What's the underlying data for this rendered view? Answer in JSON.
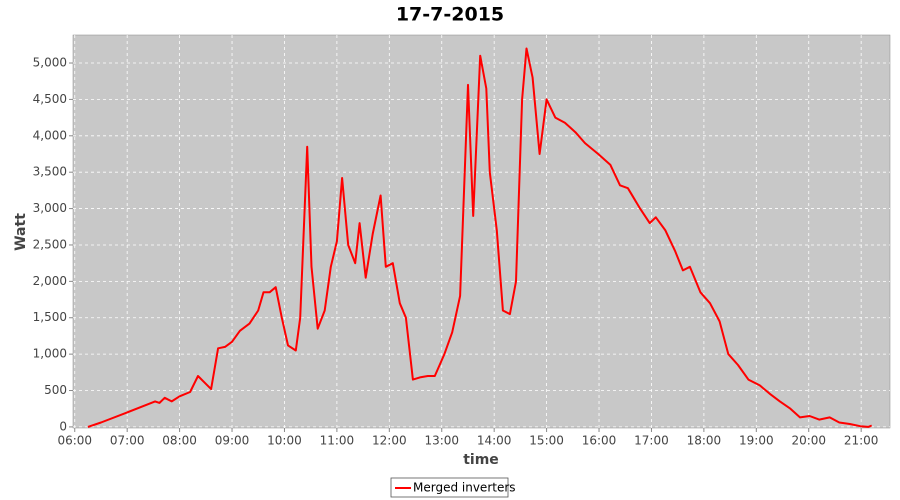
{
  "chart_data": {
    "type": "line",
    "title": "17-7-2015",
    "x_label": "time",
    "y_label": "Watt",
    "x": [
      "06:15",
      "06:30",
      "07:00",
      "07:32",
      "07:37",
      "07:43",
      "07:51",
      "08:00",
      "08:12",
      "08:21",
      "08:36",
      "08:44",
      "08:52",
      "09:00",
      "09:09",
      "09:20",
      "09:30",
      "09:36",
      "09:43",
      "09:50",
      "09:57",
      "10:04",
      "10:13",
      "10:18",
      "10:26",
      "10:31",
      "10:38",
      "10:46",
      "10:53",
      "11:00",
      "11:06",
      "11:13",
      "11:21",
      "11:26",
      "11:33",
      "11:41",
      "11:50",
      "11:56",
      "12:04",
      "12:12",
      "12:19",
      "12:27",
      "12:35",
      "12:44",
      "12:52",
      "13:03",
      "13:12",
      "13:21",
      "13:30",
      "13:36",
      "13:44",
      "13:51",
      "13:55",
      "14:03",
      "14:10",
      "14:18",
      "14:25",
      "14:32",
      "14:37",
      "14:44",
      "14:52",
      "15:00",
      "15:10",
      "15:21",
      "15:33",
      "15:44",
      "15:59",
      "16:13",
      "16:24",
      "16:33",
      "16:47",
      "16:58",
      "17:05",
      "17:16",
      "17:27",
      "17:36",
      "17:44",
      "17:56",
      "18:07",
      "18:18",
      "18:28",
      "18:39",
      "18:51",
      "19:04",
      "19:16",
      "19:27",
      "19:39",
      "19:50",
      "20:01",
      "20:12",
      "20:24",
      "20:35",
      "20:47",
      "20:59",
      "21:08",
      "21:12"
    ],
    "series": [
      {
        "name": "Merged inverters",
        "color": "#ff0000",
        "values": [
          0,
          60,
          200,
          350,
          330,
          400,
          350,
          420,
          480,
          700,
          520,
          1080,
          1100,
          1170,
          1320,
          1420,
          1600,
          1850,
          1850,
          1920,
          1500,
          1120,
          1050,
          1500,
          3850,
          2200,
          1350,
          1600,
          2200,
          2550,
          3420,
          2500,
          2250,
          2800,
          2050,
          2650,
          3180,
          2200,
          2250,
          1700,
          1500,
          650,
          680,
          700,
          700,
          1000,
          1300,
          1800,
          4700,
          2900,
          5100,
          4650,
          3500,
          2700,
          1600,
          1550,
          2000,
          4500,
          5200,
          4800,
          3750,
          4500,
          4250,
          4180,
          4050,
          3900,
          3750,
          3600,
          3320,
          3280,
          3000,
          2800,
          2880,
          2700,
          2420,
          2150,
          2200,
          1850,
          1700,
          1450,
          1000,
          850,
          650,
          570,
          450,
          350,
          250,
          130,
          150,
          100,
          130,
          60,
          40,
          10,
          0,
          20
        ]
      }
    ],
    "xlim": [
      "05:58",
      "21:33"
    ],
    "xticks": [
      "06:00",
      "07:00",
      "08:00",
      "09:00",
      "10:00",
      "11:00",
      "12:00",
      "13:00",
      "14:00",
      "15:00",
      "16:00",
      "17:00",
      "18:00",
      "19:00",
      "20:00",
      "21:00"
    ],
    "ylim": [
      -15,
      5385
    ],
    "yticks": [
      0,
      500,
      {
        "value": 1000,
        "label": "1,000"
      },
      {
        "value": 1500,
        "label": "1,500"
      },
      {
        "value": 2000,
        "label": "2,000"
      },
      {
        "value": 2500,
        "label": "2,500"
      },
      {
        "value": 3000,
        "label": "3,000"
      },
      {
        "value": 3500,
        "label": "3,500"
      },
      {
        "value": 4000,
        "label": "4,000"
      },
      {
        "value": 4500,
        "label": "4,500"
      },
      {
        "value": 5000,
        "label": "5,000"
      }
    ],
    "grid": true,
    "legend": "bottom"
  }
}
